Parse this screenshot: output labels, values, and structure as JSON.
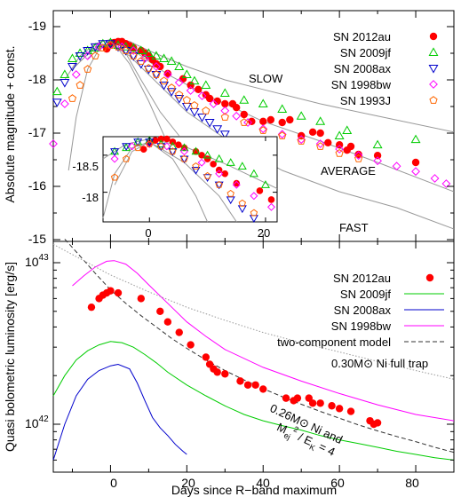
{
  "top": {
    "ylabel": "Absolute magnitude + const.",
    "ylim": [
      -14.8,
      -19.1
    ],
    "yticks": [
      "-19",
      "-18",
      "-17",
      "-16",
      "-15"
    ],
    "legend": [
      "SN 2012au",
      "SN 2009jf",
      "SN 2008ax",
      "SN 1998bw",
      "SN 1993J"
    ],
    "labels": {
      "slow": "SLOW",
      "average": "AVERAGE",
      "fast": "FAST"
    },
    "inset_yticks": [
      "-18.5",
      "-18"
    ],
    "inset_xticks": [
      "0",
      "20"
    ]
  },
  "bottom": {
    "ylabel": "Quasi bolometric luminosity [erg/s]",
    "xlabel": "Days since R−band maximum",
    "xticks": [
      "0",
      "20",
      "40",
      "60",
      "80"
    ],
    "ytick_top_base": "10",
    "ytick_top_exp": "43",
    "ytick_bot_base": "10",
    "ytick_bot_exp": "42",
    "legend": [
      "SN 2012au",
      "SN 2009jf",
      "SN 2008ax",
      "SN 1998bw",
      "two-component model"
    ],
    "ann_full_trap": "0.30M⊙ Ni full trap",
    "ann_model_1": "0.26M⊙ Ni and",
    "ann_model_2a": "M",
    "ann_model_2b": "ej",
    "ann_model_2c": "2",
    "ann_model_2d": " / E",
    "ann_model_2e": "K",
    "ann_model_2f": " = 4"
  },
  "colors": {
    "sn2012au": "#ff0000",
    "sn2009jf": "#00cc00",
    "sn2008ax": "#0000cc",
    "sn1998bw": "#ff00ff",
    "sn1993j": "#ff6600",
    "model": "#333333",
    "grey": "#999999"
  },
  "chart_data": [
    {
      "type": "scatter",
      "panel": "top",
      "xlim": [
        -15,
        90
      ],
      "ylim": [
        -14.8,
        -19.1
      ],
      "ylabel": "Absolute magnitude + const.",
      "series": [
        {
          "name": "SN 2012au",
          "marker": "filled-circle",
          "x": [
            -1,
            0,
            1,
            2,
            3,
            4,
            5,
            6,
            8,
            9,
            10,
            11,
            12,
            13,
            15,
            19,
            21,
            23,
            25,
            26,
            28,
            30,
            32,
            33,
            35,
            37,
            40,
            42,
            45,
            47,
            50,
            53,
            55,
            57,
            60,
            62,
            63,
            65,
            70,
            80
          ],
          "y": [
            -18.58,
            -18.66,
            -18.7,
            -18.72,
            -18.72,
            -18.68,
            -18.64,
            -18.6,
            -18.55,
            -18.5,
            -18.45,
            -18.38,
            -18.3,
            -18.25,
            -18.12,
            -18.02,
            -17.9,
            -17.82,
            -17.72,
            -17.65,
            -17.6,
            -17.55,
            -17.55,
            -17.48,
            -17.35,
            -17.22,
            -17.22,
            -17.25,
            -17.2,
            -17.25,
            -16.95,
            -17.02,
            -17.0,
            -16.82,
            -16.78,
            -16.68,
            -16.75,
            -16.6,
            -16.58,
            -16.45
          ]
        },
        {
          "name": "SN 2009jf",
          "marker": "open-triangle",
          "x": [
            -14,
            -12,
            -10,
            -8,
            -6,
            -4,
            -2,
            0,
            2,
            4,
            6,
            8,
            10,
            12,
            14,
            16,
            18,
            20,
            22,
            25,
            30,
            35,
            40,
            45,
            50,
            55,
            60,
            62,
            70,
            80
          ],
          "y": [
            -17.78,
            -18.1,
            -18.4,
            -18.5,
            -18.55,
            -18.6,
            -18.68,
            -18.7,
            -18.65,
            -18.62,
            -18.6,
            -18.55,
            -18.5,
            -18.45,
            -18.4,
            -18.35,
            -18.25,
            -18.1,
            -17.98,
            -17.9,
            -17.75,
            -17.62,
            -17.55,
            -17.45,
            -17.32,
            -17.22,
            -16.95,
            -17.05,
            -16.78,
            -16.88
          ]
        },
        {
          "name": "SN 2008ax",
          "marker": "open-triangle-down",
          "x": [
            -14,
            -12,
            -10,
            -8,
            -6,
            -4,
            -2,
            0,
            2,
            4,
            6,
            8,
            10,
            12,
            14,
            16,
            18,
            20,
            22,
            24,
            26,
            28,
            30
          ],
          "y": [
            -17.58,
            -17.95,
            -18.25,
            -18.45,
            -18.55,
            -18.62,
            -18.68,
            -18.68,
            -18.62,
            -18.55,
            -18.45,
            -18.3,
            -18.2,
            -18.1,
            -17.9,
            -17.78,
            -17.65,
            -17.5,
            -17.4,
            -17.3,
            -17.2,
            -17.08,
            -16.98
          ]
        },
        {
          "name": "SN 1998bw",
          "marker": "open-diamond",
          "x": [
            -15,
            -12,
            -9,
            -6,
            -3,
            0,
            3,
            6,
            9,
            12,
            15,
            18,
            21,
            24,
            27,
            30,
            33,
            36,
            40,
            45,
            50,
            55,
            60,
            65,
            70,
            75,
            80,
            85,
            88
          ],
          "y": [
            -16.8,
            -17.55,
            -18.1,
            -18.45,
            -18.62,
            -18.65,
            -18.62,
            -18.55,
            -18.4,
            -18.25,
            -18.1,
            -17.95,
            -17.8,
            -17.7,
            -17.55,
            -17.42,
            -17.32,
            -17.2,
            -17.08,
            -16.98,
            -16.88,
            -16.8,
            -16.7,
            -16.58,
            -16.48,
            -16.38,
            -16.28,
            -16.15,
            -16.05
          ]
        },
        {
          "name": "SN 1993J",
          "marker": "open-pentagon",
          "x": [
            -10,
            -8,
            -6,
            -4,
            -2,
            0,
            2,
            4,
            6,
            8,
            10,
            12,
            14,
            16,
            18,
            20,
            22,
            25,
            30,
            35,
            40,
            45,
            50,
            55,
            60,
            65
          ],
          "y": [
            -17.65,
            -17.9,
            -18.2,
            -18.45,
            -18.6,
            -18.65,
            -18.62,
            -18.55,
            -18.45,
            -18.35,
            -18.22,
            -18.1,
            -17.98,
            -17.85,
            -17.72,
            -17.62,
            -17.52,
            -17.42,
            -17.3,
            -17.2,
            -17.05,
            -16.95,
            -16.85,
            -16.75,
            -16.62,
            -16.52
          ]
        }
      ],
      "annotations": [
        "SLOW",
        "AVERAGE",
        "FAST"
      ]
    },
    {
      "type": "line",
      "panel": "bottom",
      "xlim": [
        -15,
        90
      ],
      "yscale": "log",
      "ylim": [
        6e+41,
        1.5e+43
      ],
      "xlabel": "Days since R−band maximum",
      "ylabel": "Quasi bolometric luminosity [erg/s]",
      "series": [
        {
          "name": "SN 2012au",
          "marker": "filled-circle",
          "x": [
            -5,
            -3,
            -2,
            -1,
            0,
            2,
            8,
            13,
            15,
            18,
            21,
            25,
            26,
            27,
            28,
            30,
            34,
            36,
            38,
            40,
            46,
            48,
            49,
            52,
            53,
            55,
            58,
            60,
            63,
            68,
            69,
            70
          ],
          "y": [
            5.3e+42,
            6e+42,
            6.3e+42,
            6.5e+42,
            6.7e+42,
            6.5e+42,
            6e+42,
            5e+42,
            4.3e+42,
            3.7e+42,
            3.1e+42,
            2.6e+42,
            2.35e+42,
            2.2e+42,
            2.1e+42,
            2.05e+42,
            1.85e+42,
            1.75e+42,
            1.75e+42,
            1.65e+42,
            1.45e+42,
            1.4e+42,
            1.45e+42,
            1.45e+42,
            1.35e+42,
            1.35e+42,
            1.3e+42,
            1.25e+42,
            1.2e+42,
            1.05e+42,
            1e+42,
            1.02e+42
          ]
        },
        {
          "name": "SN 2009jf",
          "marker": "line",
          "x": [
            -15,
            -12,
            -9,
            -6,
            -3,
            0,
            3,
            6,
            9,
            12,
            15,
            20,
            25,
            30,
            35,
            40,
            45,
            50,
            55,
            60,
            65,
            70,
            75,
            80,
            85,
            90
          ],
          "y": [
            1.5e+42,
            2e+42,
            2.5e+42,
            2.85e+42,
            3.1e+42,
            3.25e+42,
            3.2e+42,
            3e+42,
            2.7e+42,
            2.4e+42,
            2.1e+42,
            1.75e+42,
            1.5e+42,
            1.3e+42,
            1.15e+42,
            1.05e+42,
            9.8e+41,
            9.2e+41,
            8.5e+41,
            8e+41,
            7.6e+41,
            7.2e+41,
            6.8e+41,
            6.5e+41,
            6.2e+41,
            6e+41
          ]
        },
        {
          "name": "SN 2008ax",
          "marker": "line",
          "x": [
            -15,
            -12,
            -9,
            -6,
            -3,
            0,
            2,
            5,
            7,
            9,
            11,
            13,
            15,
            17,
            19,
            20
          ],
          "y": [
            6e+41,
            1e+42,
            1.5e+42,
            1.9e+42,
            2.15e+42,
            2.3e+42,
            2.35e+42,
            2.2e+42,
            1.8e+42,
            1.4e+42,
            1.1e+42,
            9.5e+41,
            8.5e+41,
            7.5e+41,
            6.8e+41,
            6.5e+41
          ]
        },
        {
          "name": "SN 1998bw",
          "marker": "line",
          "x": [
            -10,
            -7,
            -4,
            -1,
            1,
            4,
            7,
            10,
            15,
            20,
            25,
            30,
            40,
            50,
            60,
            70,
            80,
            90
          ],
          "y": [
            7.2e+42,
            8.3e+42,
            9.4e+42,
            1.02e+43,
            1.03e+43,
            9.8e+42,
            8.6e+42,
            7.3e+42,
            5.6e+42,
            4.3e+42,
            3.5e+42,
            2.9e+42,
            2.25e+42,
            1.85e+42,
            1.55e+42,
            1.32e+42,
            1.15e+42,
            1.05e+42
          ]
        },
        {
          "name": "two-component model",
          "marker": "dashed",
          "x": [
            -12,
            -8,
            -4,
            0,
            4,
            8,
            12,
            16,
            20,
            25,
            30,
            35,
            40,
            45,
            50,
            55,
            60,
            65,
            70,
            75,
            80,
            85,
            90
          ],
          "y": [
            1.4e+43,
            1.1e+43,
            8.6e+42,
            6.8e+42,
            5.6e+42,
            4.7e+42,
            4e+42,
            3.4e+42,
            2.95e+42,
            2.5e+42,
            2.15e+42,
            1.88e+42,
            1.66e+42,
            1.48e+42,
            1.33e+42,
            1.2e+42,
            1.09e+42,
            9.9e+41,
            9.1e+41,
            8.4e+41,
            7.8e+41,
            7.2e+41,
            6.7e+41
          ]
        }
      ],
      "annotations": [
        "0.30M⊙ Ni full trap",
        "0.26M⊙ Ni and M_ej^2 / E_K = 4"
      ]
    }
  ]
}
